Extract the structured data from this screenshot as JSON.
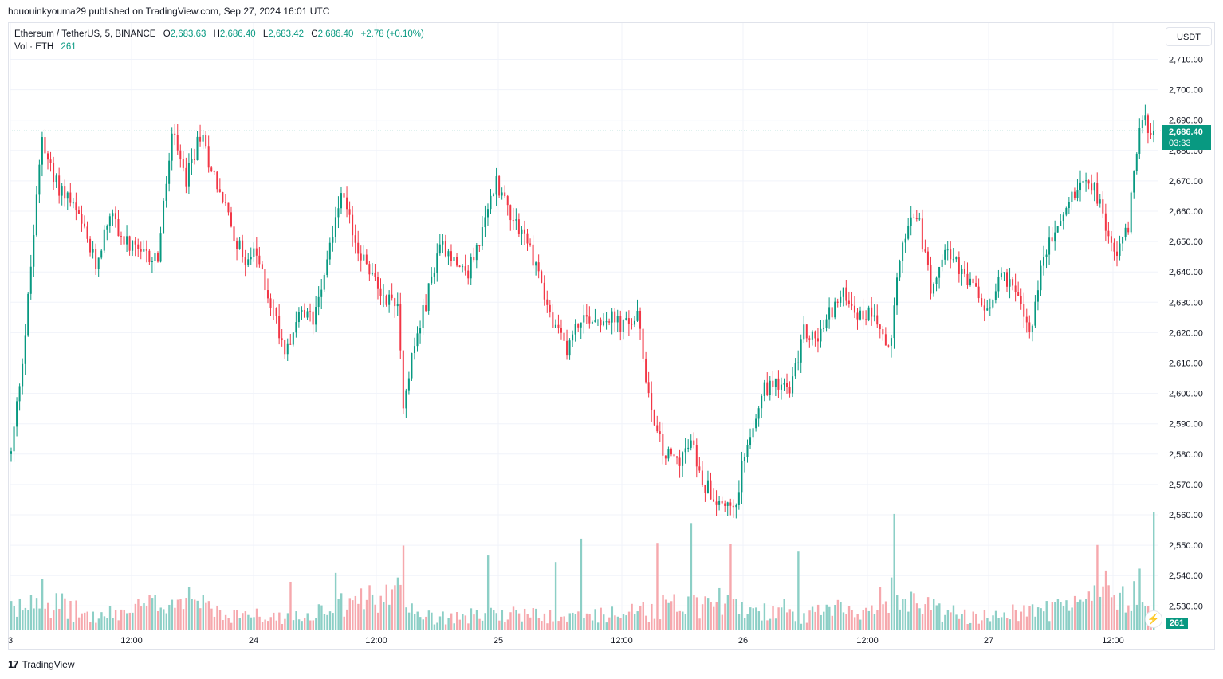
{
  "header": {
    "published_text": "hououinkyouma29 published on TradingView.com, Sep 27, 2024 16:01 UTC"
  },
  "legend": {
    "symbol": "Ethereum / TetherUS, 5, BINANCE",
    "open_label": "O",
    "open": "2,683.63",
    "high_label": "H",
    "high": "2,686.40",
    "low_label": "L",
    "low": "2,683.42",
    "close_label": "C",
    "close": "2,686.40",
    "change": "+2.78 (+0.10%)",
    "vol_label": "Vol · ETH",
    "vol_value": "261"
  },
  "currency_button": "USDT",
  "price_tag": {
    "price": "2,686.40",
    "countdown": "03:33"
  },
  "volume_tag": "261",
  "footer": {
    "brand": "TradingView",
    "logo_mark": "17"
  },
  "colors": {
    "up": "#089981",
    "down": "#f23645",
    "up_vol": "#8ccfc6",
    "down_vol": "#f6a8ad",
    "grid": "#f0f3fa"
  },
  "icons": {
    "alert": "lightning-icon"
  },
  "chart_data": {
    "type": "candlestick",
    "symbol": "ETHUSDT",
    "interval": "5",
    "ylim": [
      2520,
      2715
    ],
    "y_ticks": [
      "2,710.00",
      "2,700.00",
      "2,690.00",
      "2,680.00",
      "2,670.00",
      "2,660.00",
      "2,650.00",
      "2,640.00",
      "2,630.00",
      "2,620.00",
      "2,610.00",
      "2,600.00",
      "2,590.00",
      "2,580.00",
      "2,570.00",
      "2,560.00",
      "2,550.00",
      "2,540.00",
      "2,530.00"
    ],
    "x_ticks": [
      "3",
      "12:00",
      "24",
      "12:00",
      "25",
      "12:00",
      "26",
      "12:00",
      "27",
      "12:00"
    ],
    "last_price": 2686.4,
    "price_path": [
      [
        0,
        2580
      ],
      [
        5,
        2620
      ],
      [
        11,
        2685
      ],
      [
        15,
        2670
      ],
      [
        20,
        2665
      ],
      [
        25,
        2655
      ],
      [
        30,
        2642
      ],
      [
        35,
        2660
      ],
      [
        40,
        2650
      ],
      [
        46,
        2645
      ],
      [
        52,
        2645
      ],
      [
        57,
        2685
      ],
      [
        62,
        2670
      ],
      [
        67,
        2685
      ],
      [
        72,
        2672
      ],
      [
        77,
        2658
      ],
      [
        82,
        2645
      ],
      [
        87,
        2645
      ],
      [
        92,
        2630
      ],
      [
        97,
        2615
      ],
      [
        102,
        2625
      ],
      [
        107,
        2625
      ],
      [
        112,
        2645
      ],
      [
        117,
        2665
      ],
      [
        122,
        2650
      ],
      [
        127,
        2640
      ],
      [
        132,
        2632
      ],
      [
        137,
        2630
      ],
      [
        139,
        2598
      ],
      [
        142,
        2612
      ],
      [
        147,
        2630
      ],
      [
        152,
        2650
      ],
      [
        157,
        2645
      ],
      [
        162,
        2640
      ],
      [
        167,
        2653
      ],
      [
        172,
        2670
      ],
      [
        177,
        2660
      ],
      [
        182,
        2652
      ],
      [
        187,
        2640
      ],
      [
        192,
        2622
      ],
      [
        197,
        2615
      ],
      [
        202,
        2625
      ],
      [
        207,
        2625
      ],
      [
        212,
        2625
      ],
      [
        217,
        2622
      ],
      [
        222,
        2625
      ],
      [
        226,
        2600
      ],
      [
        231,
        2580
      ],
      [
        236,
        2578
      ],
      [
        241,
        2583
      ],
      [
        246,
        2570
      ],
      [
        251,
        2565
      ],
      [
        256,
        2560
      ],
      [
        261,
        2585
      ],
      [
        266,
        2600
      ],
      [
        271,
        2605
      ],
      [
        276,
        2600
      ],
      [
        281,
        2620
      ],
      [
        286,
        2618
      ],
      [
        291,
        2628
      ],
      [
        296,
        2633
      ],
      [
        301,
        2625
      ],
      [
        306,
        2628
      ],
      [
        311,
        2613
      ],
      [
        316,
        2650
      ],
      [
        321,
        2660
      ],
      [
        326,
        2635
      ],
      [
        331,
        2650
      ],
      [
        336,
        2640
      ],
      [
        341,
        2635
      ],
      [
        346,
        2625
      ],
      [
        351,
        2642
      ],
      [
        356,
        2632
      ],
      [
        361,
        2620
      ],
      [
        366,
        2645
      ],
      [
        371,
        2655
      ],
      [
        376,
        2665
      ],
      [
        381,
        2673
      ],
      [
        386,
        2663
      ],
      [
        391,
        2645
      ],
      [
        396,
        2655
      ],
      [
        400,
        2690
      ],
      [
        405,
        2687
      ]
    ],
    "volume_path": [
      [
        0,
        30
      ],
      [
        10,
        50
      ],
      [
        30,
        20
      ],
      [
        50,
        40
      ],
      [
        57,
        55
      ],
      [
        75,
        25
      ],
      [
        100,
        20
      ],
      [
        137,
        60
      ],
      [
        150,
        20
      ],
      [
        175,
        25
      ],
      [
        200,
        20
      ],
      [
        226,
        30
      ],
      [
        231,
        45
      ],
      [
        260,
        35
      ],
      [
        280,
        20
      ],
      [
        310,
        50
      ],
      [
        340,
        20
      ],
      [
        370,
        35
      ],
      [
        400,
        60
      ],
      [
        405,
        30
      ]
    ]
  }
}
